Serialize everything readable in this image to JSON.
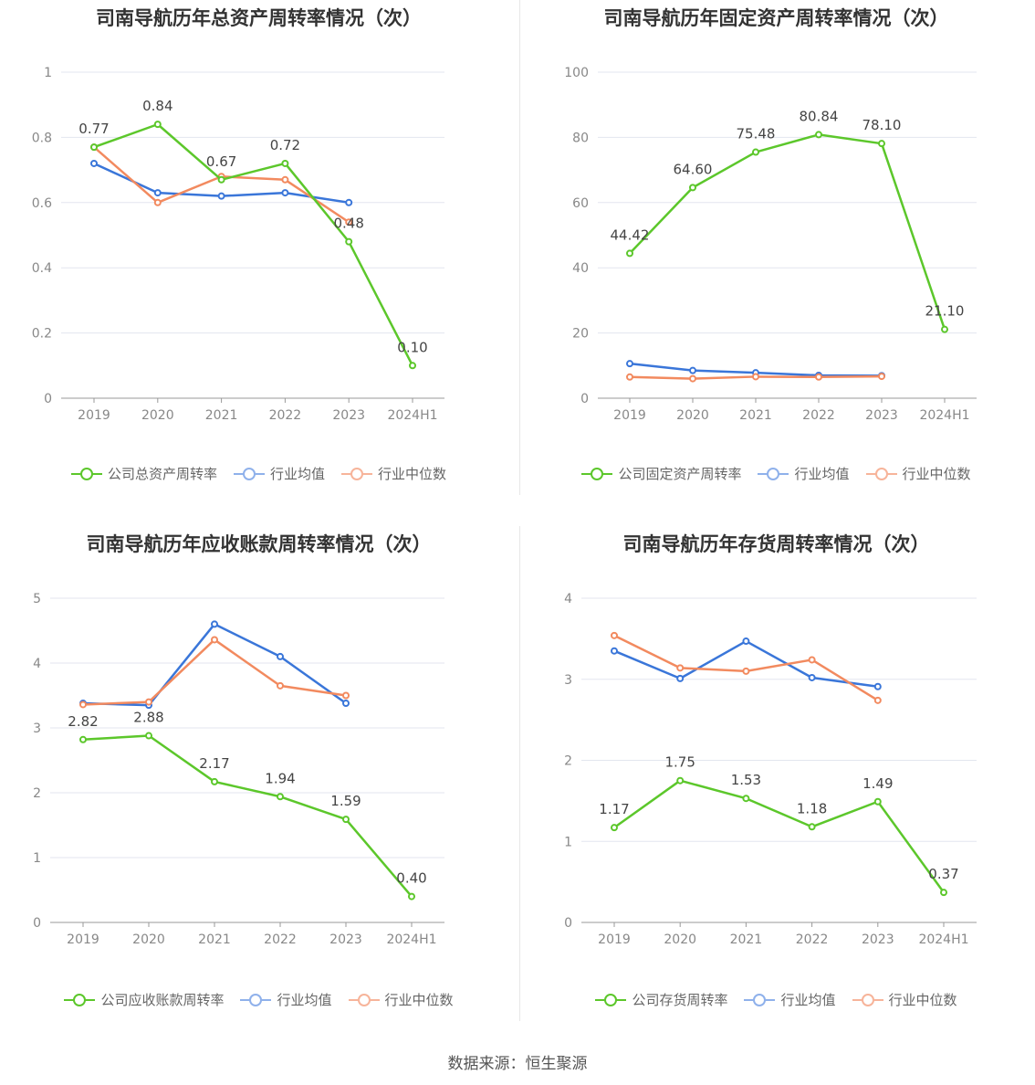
{
  "source": "数据来源：恒生聚源",
  "legend_common": {
    "avg": "行业均值",
    "median": "行业中位数"
  },
  "colors": {
    "company": "#5cc72b",
    "avg": "#3a76d9",
    "median": "#f28a5f",
    "avg_legend": "#8fb1eb",
    "median_legend": "#f7b49a"
  },
  "chart_data": [
    {
      "type": "line",
      "title": "司南导航历年总资产周转率情况（次）",
      "categories": [
        "2019",
        "2020",
        "2021",
        "2022",
        "2023",
        "2024H1"
      ],
      "ylim": [
        0,
        1
      ],
      "yticks": [
        "0",
        "0.2",
        "0.4",
        "0.6",
        "0.8",
        "1"
      ],
      "grid": true,
      "legend_position": "bottom",
      "series": [
        {
          "name": "公司总资产周转率",
          "values": [
            0.77,
            0.84,
            0.67,
            0.72,
            0.48,
            0.1
          ],
          "labels": [
            "0.77",
            "0.84",
            "0.67",
            "0.72",
            "0.48",
            "0.10"
          ]
        },
        {
          "name": "行业均值",
          "values": [
            0.72,
            0.63,
            0.62,
            0.63,
            0.6,
            null
          ]
        },
        {
          "name": "行业中位数",
          "values": [
            0.77,
            0.6,
            0.68,
            0.67,
            0.54,
            null
          ]
        }
      ]
    },
    {
      "type": "line",
      "title": "司南导航历年固定资产周转率情况（次）",
      "categories": [
        "2019",
        "2020",
        "2021",
        "2022",
        "2023",
        "2024H1"
      ],
      "ylim": [
        0,
        100
      ],
      "yticks": [
        "0",
        "20",
        "40",
        "60",
        "80",
        "100"
      ],
      "grid": true,
      "legend_position": "bottom",
      "series": [
        {
          "name": "公司固定资产周转率",
          "values": [
            44.42,
            64.6,
            75.48,
            80.84,
            78.1,
            21.1
          ],
          "labels": [
            "44.42",
            "64.60",
            "75.48",
            "80.84",
            "78.10",
            "21.10"
          ]
        },
        {
          "name": "行业均值",
          "values": [
            10.6,
            8.5,
            7.8,
            7.0,
            6.9,
            null
          ]
        },
        {
          "name": "行业中位数",
          "values": [
            6.5,
            6.0,
            6.6,
            6.5,
            6.7,
            null
          ]
        }
      ]
    },
    {
      "type": "line",
      "title": "司南导航历年应收账款周转率情况（次）",
      "categories": [
        "2019",
        "2020",
        "2021",
        "2022",
        "2023",
        "2024H1"
      ],
      "ylim": [
        0,
        5
      ],
      "yticks": [
        "0",
        "1",
        "2",
        "3",
        "4",
        "5"
      ],
      "grid": true,
      "legend_position": "bottom",
      "series": [
        {
          "name": "公司应收账款周转率",
          "values": [
            2.82,
            2.88,
            2.17,
            1.94,
            1.59,
            0.4
          ],
          "labels": [
            "2.82",
            "2.88",
            "2.17",
            "1.94",
            "1.59",
            "0.40"
          ]
        },
        {
          "name": "行业均值",
          "values": [
            3.38,
            3.35,
            4.6,
            4.1,
            3.38,
            null
          ]
        },
        {
          "name": "行业中位数",
          "values": [
            3.36,
            3.4,
            4.36,
            3.65,
            3.5,
            null
          ]
        }
      ]
    },
    {
      "type": "line",
      "title": "司南导航历年存货周转率情况（次）",
      "categories": [
        "2019",
        "2020",
        "2021",
        "2022",
        "2023",
        "2024H1"
      ],
      "ylim": [
        0,
        4
      ],
      "yticks": [
        "0",
        "1",
        "2",
        "3",
        "4"
      ],
      "grid": true,
      "legend_position": "bottom",
      "series": [
        {
          "name": "公司存货周转率",
          "values": [
            1.17,
            1.75,
            1.53,
            1.18,
            1.49,
            0.37
          ],
          "labels": [
            "1.17",
            "1.75",
            "1.53",
            "1.18",
            "1.49",
            "0.37"
          ]
        },
        {
          "name": "行业均值",
          "values": [
            3.35,
            3.01,
            3.47,
            3.02,
            2.91,
            null
          ]
        },
        {
          "name": "行业中位数",
          "values": [
            3.54,
            3.14,
            3.1,
            3.24,
            2.74,
            null
          ]
        }
      ]
    }
  ]
}
